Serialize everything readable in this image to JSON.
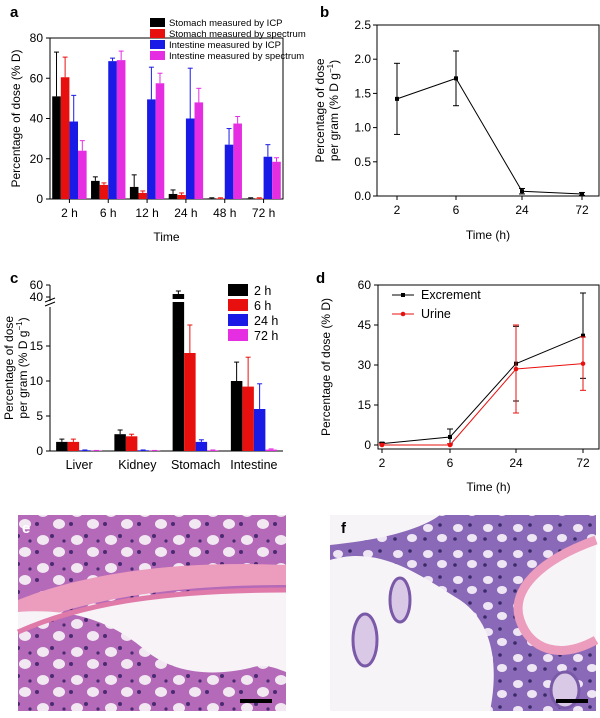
{
  "panels": {
    "a": "a",
    "b": "b",
    "c": "c",
    "d": "d",
    "e": "e",
    "f": "f"
  },
  "colors": {
    "black": "#000000",
    "red": "#e8100e",
    "blue": "#1a1ae6",
    "magenta": "#e52de2"
  },
  "chart_data": [
    {
      "type": "bar",
      "panel": "a",
      "ylabel": "Percentage of dose (% D)",
      "xlabel": "Time",
      "categories": [
        "2 h",
        "6 h",
        "12 h",
        "24 h",
        "48 h",
        "72 h"
      ],
      "ylim": [
        0,
        80
      ],
      "yticks": [
        "0",
        "20",
        "40",
        "60",
        "80"
      ],
      "legend_position": "top-right",
      "series": [
        {
          "name": "Stomach measured by ICP",
          "color": "#000000",
          "values": [
            51,
            9,
            6,
            2.5,
            0.3,
            0.3
          ],
          "errors": [
            22,
            2,
            6,
            2,
            0.3,
            0.3
          ]
        },
        {
          "name": "Stomach measured by spectrum",
          "color": "#e8100e",
          "values": [
            60.5,
            7,
            3,
            2,
            0.3,
            0.3
          ],
          "errors": [
            10,
            1,
            1,
            1,
            0.3,
            0.3
          ]
        },
        {
          "name": "Intestine measured by ICP",
          "color": "#1a1ae6",
          "values": [
            38.5,
            68.5,
            49.5,
            40,
            27,
            21
          ],
          "errors": [
            13,
            1.5,
            16,
            25,
            8,
            6
          ]
        },
        {
          "name": "Intestine measured by spectrum",
          "color": "#e52de2",
          "values": [
            24,
            69,
            57.5,
            48,
            37.5,
            18.5
          ],
          "errors": [
            5,
            4.5,
            5,
            7,
            3.5,
            2
          ]
        }
      ]
    },
    {
      "type": "line",
      "panel": "b",
      "ylabel_line1": "Percentage of dose",
      "ylabel_line2_prefix": "per gram (% D g",
      "ylabel_sup": "−1",
      "ylabel_line2_suffix": ")",
      "xlabel": "Time (h)",
      "x": [
        "2",
        "6",
        "24",
        "72"
      ],
      "ylim": [
        0,
        2.5
      ],
      "yticks": [
        "0.0",
        "0.5",
        "1.0",
        "1.5",
        "2.0",
        "2.5"
      ],
      "series": [
        {
          "color": "#000000",
          "values": [
            1.42,
            1.72,
            0.07,
            0.03
          ],
          "errors": [
            0.52,
            0.4,
            0.04,
            0.02
          ]
        }
      ]
    },
    {
      "type": "bar",
      "panel": "c",
      "ylabel_line1": "Percentage of dose",
      "ylabel_line2_prefix": "per gram (% D g",
      "ylabel_sup": "−1",
      "ylabel_line2_suffix": ")",
      "categories": [
        "Liver",
        "Kidney",
        "Stomach",
        "Intestine"
      ],
      "axis_break": true,
      "ylim_lower": [
        0,
        18
      ],
      "ylim_upper": [
        40,
        60
      ],
      "yticks": [
        "0",
        "5",
        "10",
        "15",
        "40",
        "60"
      ],
      "legend_position": "top-right",
      "series": [
        {
          "name": "2 h",
          "color": "#000000",
          "values": [
            1.3,
            2.4,
            45,
            10
          ],
          "errors": [
            0.4,
            0.6,
            5,
            2.7
          ]
        },
        {
          "name": "6 h",
          "color": "#e8100e",
          "values": [
            1.3,
            2.1,
            14,
            9.2
          ],
          "errors": [
            0.4,
            0.3,
            5.5,
            4.2
          ]
        },
        {
          "name": "24 h",
          "color": "#1a1ae6",
          "values": [
            0.1,
            0.1,
            1.3,
            6
          ],
          "errors": [
            0.05,
            0.05,
            0.3,
            3.6
          ]
        },
        {
          "name": "72 h",
          "color": "#e52de2",
          "values": [
            0.05,
            0.05,
            0.1,
            0.2
          ],
          "errors": [
            0.03,
            0.03,
            0.05,
            0.1
          ]
        }
      ]
    },
    {
      "type": "line",
      "panel": "d",
      "ylabel": "Percentage of dose (% D)",
      "xlabel": "Time (h)",
      "x": [
        "2",
        "6",
        "24",
        "72"
      ],
      "ylim": [
        0,
        60
      ],
      "yticks": [
        "0",
        "15",
        "30",
        "45",
        "60"
      ],
      "legend_position": "top-left",
      "series": [
        {
          "name": "Excrement",
          "color": "#000000",
          "values": [
            0.5,
            3,
            30.5,
            41
          ],
          "errors": [
            0.5,
            3,
            14,
            16
          ]
        },
        {
          "name": "Urine",
          "color": "#e8100e",
          "values": [
            0,
            0,
            28.5,
            30.5
          ],
          "errors": [
            0.5,
            0.5,
            16.5,
            10
          ]
        }
      ]
    }
  ]
}
